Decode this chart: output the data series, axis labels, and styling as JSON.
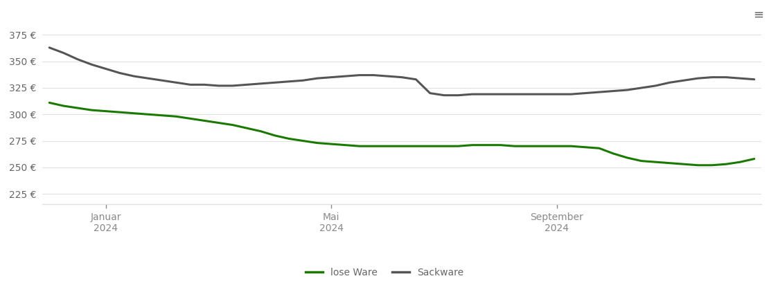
{
  "lose_ware": {
    "x": [
      0,
      1,
      2,
      3,
      4,
      5,
      6,
      7,
      8,
      9,
      10,
      11,
      12,
      13,
      14,
      15,
      16,
      17,
      18,
      19,
      20,
      21,
      22,
      23,
      24,
      25,
      26,
      27,
      28,
      29,
      30,
      31,
      32,
      33,
      34,
      35,
      36,
      37,
      38,
      39,
      40,
      41,
      42,
      43,
      44,
      45,
      46,
      47,
      48,
      49,
      50
    ],
    "y": [
      311,
      308,
      306,
      304,
      303,
      302,
      301,
      300,
      299,
      298,
      296,
      294,
      292,
      290,
      287,
      284,
      280,
      277,
      275,
      273,
      272,
      271,
      270,
      270,
      270,
      270,
      270,
      270,
      270,
      270,
      271,
      271,
      271,
      270,
      270,
      270,
      270,
      270,
      269,
      268,
      263,
      259,
      256,
      255,
      254,
      253,
      252,
      252,
      253,
      255,
      258
    ],
    "color": "#1a7a00",
    "linewidth": 2.2,
    "label": "lose Ware"
  },
  "sackware": {
    "x": [
      0,
      1,
      2,
      3,
      4,
      5,
      6,
      7,
      8,
      9,
      10,
      11,
      12,
      13,
      14,
      15,
      16,
      17,
      18,
      19,
      20,
      21,
      22,
      23,
      24,
      25,
      26,
      27,
      28,
      29,
      30,
      31,
      32,
      33,
      34,
      35,
      36,
      37,
      38,
      39,
      40,
      41,
      42,
      43,
      44,
      45,
      46,
      47,
      48,
      49,
      50
    ],
    "y": [
      363,
      358,
      352,
      347,
      343,
      339,
      336,
      334,
      332,
      330,
      328,
      328,
      327,
      327,
      328,
      329,
      330,
      331,
      332,
      334,
      335,
      336,
      337,
      337,
      336,
      335,
      333,
      320,
      318,
      318,
      319,
      319,
      319,
      319,
      319,
      319,
      319,
      319,
      320,
      321,
      322,
      323,
      325,
      327,
      330,
      332,
      334,
      335,
      335,
      334,
      333
    ],
    "color": "#555555",
    "linewidth": 2.2,
    "label": "Sackware"
  },
  "x_ticks": {
    "positions": [
      4,
      20,
      36
    ],
    "labels_line1": [
      "Januar",
      "Mai",
      "September"
    ],
    "labels_line2": [
      "2024",
      "2024",
      "2024"
    ]
  },
  "y_ticks": [
    225,
    250,
    275,
    300,
    325,
    350,
    375
  ],
  "ylim": [
    215,
    390
  ],
  "xlim": [
    -0.5,
    50.5
  ],
  "background_color": "#ffffff",
  "grid_color": "#e0e0e0",
  "tick_color": "#888888",
  "font_color": "#666666",
  "font_size": 10,
  "menu_icon_color": "#666666"
}
